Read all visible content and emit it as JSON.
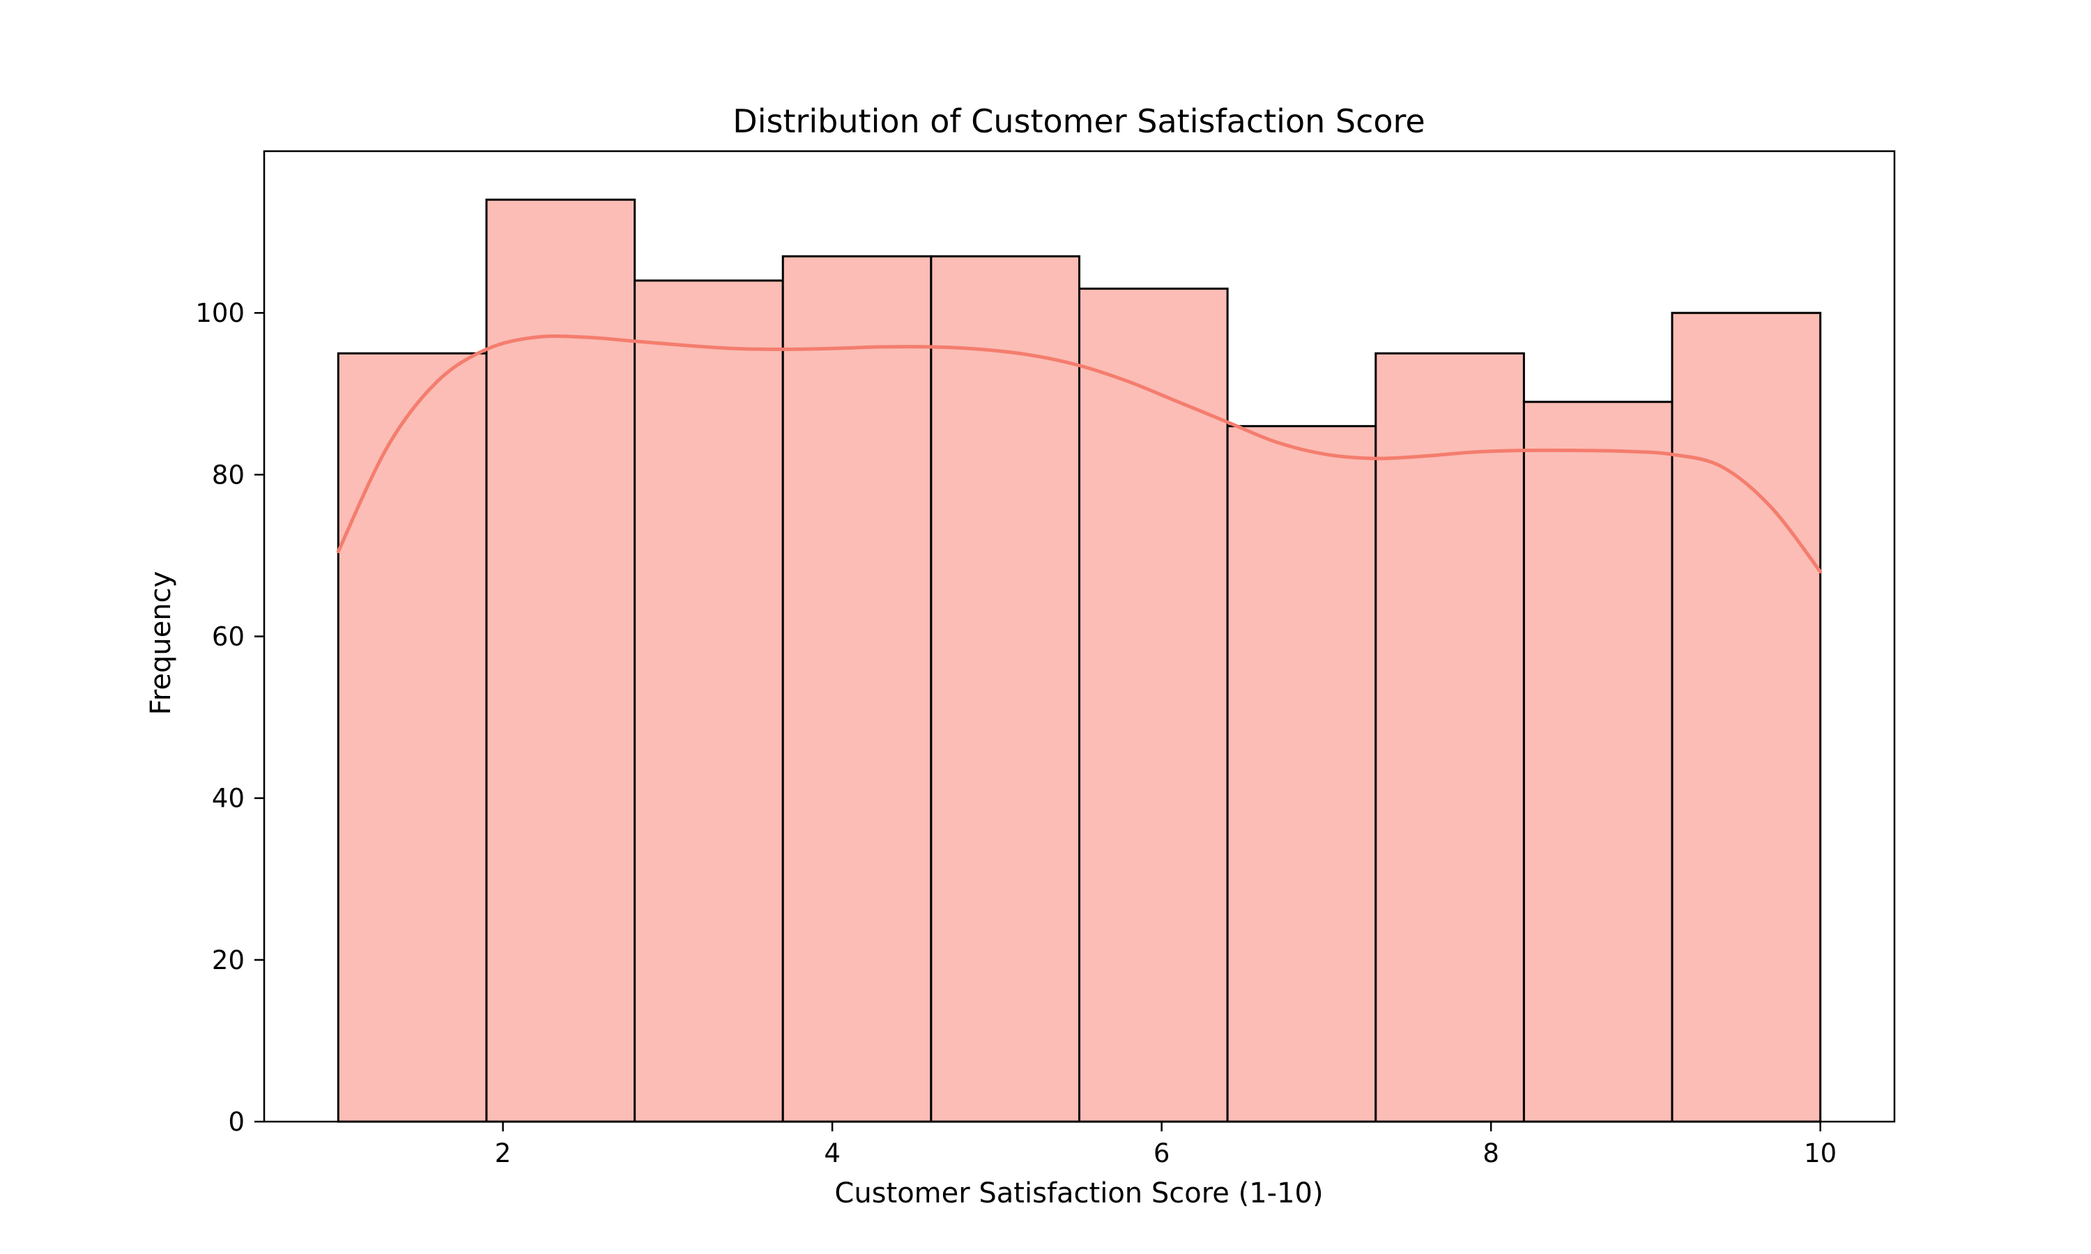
{
  "chart_data": {
    "type": "bar",
    "subtype": "histogram-with-kde",
    "title": "Distribution of Customer Satisfaction Score",
    "xlabel": "Customer Satisfaction Score (1-10)",
    "ylabel": "Frequency",
    "xlim": [
      0.55,
      10.45
    ],
    "ylim": [
      0,
      120
    ],
    "xticks": [
      2,
      4,
      6,
      8,
      10
    ],
    "yticks": [
      0,
      20,
      40,
      60,
      80,
      100
    ],
    "bin_edges": [
      1.0,
      1.9,
      2.8,
      3.7,
      4.6,
      5.5,
      6.4,
      7.3,
      8.2,
      9.1,
      10.0
    ],
    "values": [
      95,
      114,
      104,
      107,
      107,
      103,
      86,
      95,
      89,
      100
    ],
    "kde": {
      "x": [
        1.0,
        1.3,
        1.6,
        1.9,
        2.2,
        2.5,
        2.8,
        3.1,
        3.4,
        3.7,
        4.0,
        4.3,
        4.6,
        4.9,
        5.2,
        5.5,
        5.8,
        6.1,
        6.4,
        6.7,
        7.0,
        7.3,
        7.6,
        7.9,
        8.2,
        8.5,
        8.8,
        9.1,
        9.4,
        9.7,
        10.0
      ],
      "y": [
        70.5,
        83.5,
        91.5,
        95.5,
        97,
        97,
        96.5,
        96,
        95.6,
        95.5,
        95.6,
        95.8,
        95.8,
        95.5,
        94.8,
        93.5,
        91.5,
        89,
        86.5,
        84,
        82.5,
        82,
        82.3,
        82.8,
        83,
        83,
        82.9,
        82.5,
        81,
        76,
        68
      ]
    },
    "grid": false,
    "legend": "none",
    "bar_color": "#fbbdb5",
    "bar_edge_color": "#000000",
    "kde_color": "#f47d6e"
  }
}
